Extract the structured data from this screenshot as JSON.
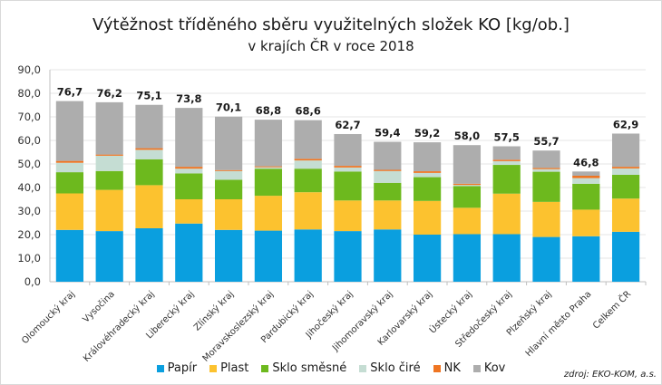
{
  "chart_data": {
    "type": "bar",
    "stacked": true,
    "title": "Výtěžnost tříděného sběru využitelných složek KO [kg/ob.]",
    "subtitle": "v krajích ČR v roce 2018",
    "xlabel": "",
    "ylabel": "",
    "ylim": [
      0,
      90
    ],
    "yticks": [
      "0,0",
      "10,0",
      "20,0",
      "30,0",
      "40,0",
      "50,0",
      "60,0",
      "70,0",
      "80,0",
      "90,0"
    ],
    "grid": true,
    "legend_position": "bottom",
    "categories": [
      "Olomoucký kraj",
      "Vysočina",
      "Královéhradecký kraj",
      "Liberecký kraj",
      "Zlínský kraj",
      "Moravskoslezský kraj",
      "Pardubický kraj",
      "Jihočeský kraj",
      "Jihomoravský kraj",
      "Karlovarský kraj",
      "Ústecký kraj",
      "Středočeský kraj",
      "Plzeňský kraj",
      "Hlavní město Praha",
      "Celkem ČR"
    ],
    "totals": [
      "76,7",
      "76,2",
      "75,1",
      "73,8",
      "70,1",
      "68,8",
      "68,6",
      "62,7",
      "59,4",
      "59,2",
      "58,0",
      "57,5",
      "55,7",
      "46,8",
      "62,9"
    ],
    "series": [
      {
        "name": "Papír",
        "color": "#0a9fdf",
        "values": [
          22.0,
          21.5,
          22.7,
          24.7,
          22.0,
          21.7,
          22.2,
          21.5,
          22.2,
          20.0,
          20.2,
          20.2,
          19.0,
          19.3,
          21.2
        ]
      },
      {
        "name": "Plast",
        "color": "#fcc22f",
        "values": [
          15.5,
          17.5,
          18.3,
          10.3,
          13.0,
          14.8,
          15.8,
          13.0,
          12.3,
          14.3,
          11.2,
          17.2,
          14.9,
          11.3,
          14.1
        ]
      },
      {
        "name": "Sklo směsné",
        "color": "#6db91e",
        "values": [
          9.0,
          8.0,
          11.0,
          11.0,
          8.3,
          11.5,
          10.0,
          12.3,
          7.5,
          10.1,
          9.2,
          12.2,
          12.8,
          11.0,
          10.1
        ]
      },
      {
        "name": "Sklo čiré",
        "color": "#c5ddd3",
        "values": [
          4.0,
          6.5,
          4.0,
          2.0,
          3.7,
          0.6,
          3.5,
          1.7,
          5.0,
          1.8,
          0.5,
          1.6,
          1.1,
          2.4,
          2.7
        ]
      },
      {
        "name": "NK",
        "color": "#ef7522",
        "values": [
          0.8,
          0.5,
          0.7,
          0.8,
          0.4,
          0.4,
          0.7,
          0.7,
          0.5,
          0.7,
          0.5,
          0.6,
          0.5,
          1.0,
          0.7
        ]
      },
      {
        "name": "Kov",
        "color": "#adadad",
        "values": [
          25.4,
          22.2,
          18.4,
          25.0,
          22.7,
          19.8,
          16.4,
          13.5,
          11.9,
          12.3,
          16.4,
          5.7,
          7.4,
          1.8,
          14.1
        ]
      }
    ]
  },
  "header": {
    "title": "Výtěžnost tříděného sběru využitelných složek KO [kg/ob.]",
    "subtitle": "v krajích ČR v roce 2018"
  },
  "legend": [
    {
      "label": "Papír",
      "color": "#0a9fdf"
    },
    {
      "label": "Plast",
      "color": "#fcc22f"
    },
    {
      "label": "Sklo směsné",
      "color": "#6db91e"
    },
    {
      "label": "Sklo čiré",
      "color": "#c5ddd3"
    },
    {
      "label": "NK",
      "color": "#ef7522"
    },
    {
      "label": "Kov",
      "color": "#adadad"
    }
  ],
  "source": "zdroj: EKO-KOM, a.s."
}
